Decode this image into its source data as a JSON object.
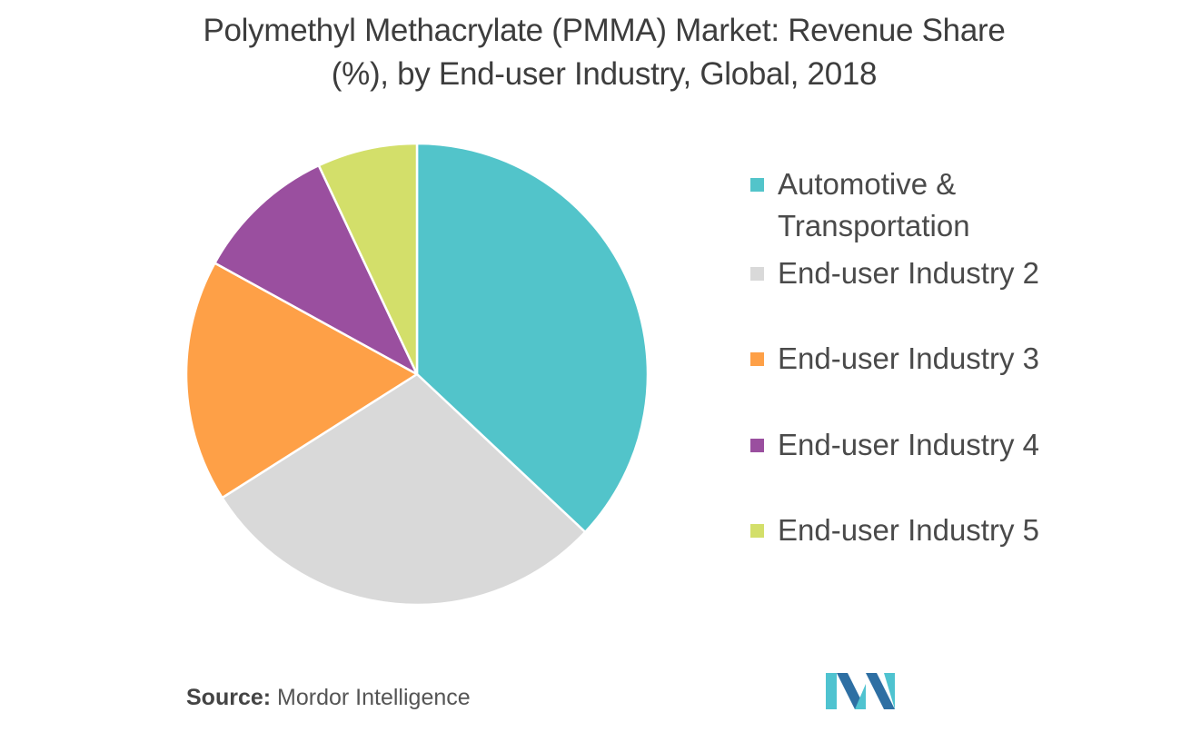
{
  "title_line1": "Polymethyl Methacrylate (PMMA) Market: Revenue Share",
  "title_line2": "(%), by End-user Industry, Global, 2018",
  "source_label": "Source:",
  "source_value": "Mordor Intelligence",
  "colors": {
    "teal": "#52c4ca",
    "grey": "#d9d9d9",
    "orange": "#fea047",
    "purple": "#9a4f9f",
    "lime": "#d3df6a",
    "logo_dark": "#2e6fa3",
    "logo_light": "#4fc3d0"
  },
  "chart_data": {
    "type": "pie",
    "title": "Polymethyl Methacrylate (PMMA) Market: Revenue Share (%), by End-user Industry, Global, 2018",
    "legend_position": "right",
    "start_angle_deg": 0,
    "direction": "clockwise",
    "slices": [
      {
        "label": "Automotive &\nTransportation",
        "value": 37,
        "color": "#52c4ca"
      },
      {
        "label": "End-user Industry 2",
        "value": 29,
        "color": "#d9d9d9"
      },
      {
        "label": "End-user Industry 3",
        "value": 17,
        "color": "#fea047"
      },
      {
        "label": "End-user Industry 4",
        "value": 10,
        "color": "#9a4f9f"
      },
      {
        "label": "End-user Industry 5",
        "value": 7,
        "color": "#d3df6a"
      }
    ]
  }
}
